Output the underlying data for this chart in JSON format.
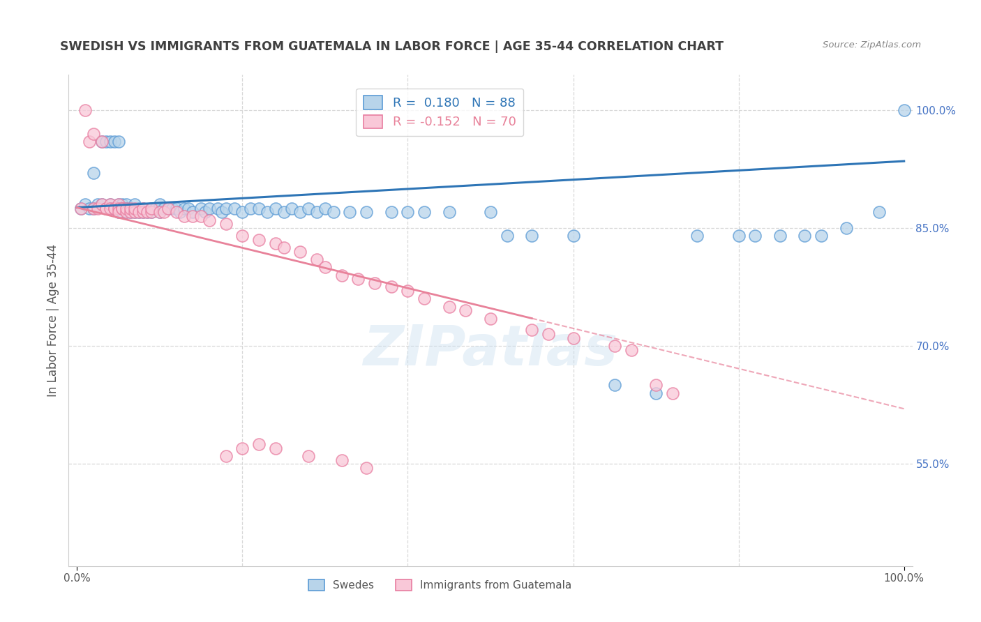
{
  "title": "SWEDISH VS IMMIGRANTS FROM GUATEMALA IN LABOR FORCE | AGE 35-44 CORRELATION CHART",
  "source": "Source: ZipAtlas.com",
  "ylabel": "In Labor Force | Age 35-44",
  "xlim": [
    -0.01,
    1.01
  ],
  "ylim": [
    0.42,
    1.045
  ],
  "yticks": [
    0.55,
    0.7,
    0.85,
    1.0
  ],
  "ytick_labels": [
    "55.0%",
    "70.0%",
    "85.0%",
    "100.0%"
  ],
  "swedes_color": "#b8d4ea",
  "swedes_edge_color": "#5b9bd5",
  "guatemala_color": "#f9c8d8",
  "guatemala_edge_color": "#e87da0",
  "trend_blue_color": "#2e75b6",
  "trend_pink_color": "#e8829a",
  "legend_label_blue": "R =  0.180   N = 88",
  "legend_label_pink": "R = -0.152   N = 70",
  "trend_blue_x0": 0.0,
  "trend_blue_y0": 0.876,
  "trend_blue_x1": 1.0,
  "trend_blue_y1": 0.935,
  "trend_pink_solid_x0": 0.0,
  "trend_pink_solid_y0": 0.876,
  "trend_pink_solid_x1": 0.55,
  "trend_pink_solid_y1": 0.735,
  "trend_pink_dash_x0": 0.55,
  "trend_pink_dash_y0": 0.735,
  "trend_pink_dash_x1": 1.0,
  "trend_pink_dash_y1": 0.62,
  "swedes_x": [
    0.005,
    0.01,
    0.015,
    0.02,
    0.02,
    0.025,
    0.03,
    0.03,
    0.035,
    0.035,
    0.04,
    0.04,
    0.04,
    0.045,
    0.045,
    0.05,
    0.05,
    0.05,
    0.05,
    0.055,
    0.055,
    0.055,
    0.06,
    0.06,
    0.06,
    0.065,
    0.065,
    0.07,
    0.07,
    0.07,
    0.075,
    0.075,
    0.08,
    0.08,
    0.085,
    0.09,
    0.09,
    0.095,
    0.1,
    0.1,
    0.105,
    0.11,
    0.115,
    0.12,
    0.125,
    0.13,
    0.135,
    0.14,
    0.15,
    0.155,
    0.16,
    0.17,
    0.175,
    0.18,
    0.19,
    0.2,
    0.21,
    0.22,
    0.23,
    0.24,
    0.25,
    0.26,
    0.27,
    0.28,
    0.29,
    0.3,
    0.31,
    0.33,
    0.35,
    0.38,
    0.4,
    0.42,
    0.45,
    0.5,
    0.52,
    0.55,
    0.6,
    0.65,
    0.7,
    0.75,
    0.8,
    0.82,
    0.85,
    0.88,
    0.9,
    0.93,
    0.97,
    1.0
  ],
  "swedes_y": [
    0.875,
    0.88,
    0.875,
    0.875,
    0.92,
    0.88,
    0.88,
    0.96,
    0.875,
    0.96,
    0.88,
    0.875,
    0.96,
    0.875,
    0.96,
    0.875,
    0.88,
    0.96,
    0.87,
    0.87,
    0.875,
    0.88,
    0.87,
    0.88,
    0.875,
    0.875,
    0.87,
    0.87,
    0.875,
    0.88,
    0.87,
    0.875,
    0.87,
    0.875,
    0.87,
    0.87,
    0.875,
    0.875,
    0.87,
    0.88,
    0.875,
    0.875,
    0.875,
    0.875,
    0.87,
    0.875,
    0.875,
    0.87,
    0.875,
    0.87,
    0.875,
    0.875,
    0.87,
    0.875,
    0.875,
    0.87,
    0.875,
    0.875,
    0.87,
    0.875,
    0.87,
    0.875,
    0.87,
    0.875,
    0.87,
    0.875,
    0.87,
    0.87,
    0.87,
    0.87,
    0.87,
    0.87,
    0.87,
    0.87,
    0.84,
    0.84,
    0.84,
    0.65,
    0.64,
    0.84,
    0.84,
    0.84,
    0.84,
    0.84,
    0.84,
    0.85,
    0.87,
    1.0
  ],
  "guatemala_x": [
    0.005,
    0.01,
    0.015,
    0.02,
    0.02,
    0.025,
    0.03,
    0.03,
    0.035,
    0.035,
    0.04,
    0.04,
    0.045,
    0.045,
    0.05,
    0.05,
    0.05,
    0.055,
    0.055,
    0.06,
    0.06,
    0.065,
    0.065,
    0.07,
    0.07,
    0.075,
    0.08,
    0.08,
    0.085,
    0.09,
    0.09,
    0.1,
    0.105,
    0.11,
    0.12,
    0.13,
    0.14,
    0.15,
    0.16,
    0.18,
    0.2,
    0.22,
    0.24,
    0.25,
    0.27,
    0.29,
    0.3,
    0.32,
    0.34,
    0.36,
    0.38,
    0.4,
    0.42,
    0.45,
    0.47,
    0.5,
    0.55,
    0.57,
    0.6,
    0.65,
    0.67,
    0.7,
    0.72,
    0.18,
    0.2,
    0.22,
    0.24,
    0.28,
    0.32,
    0.35
  ],
  "guatemala_y": [
    0.875,
    1.0,
    0.96,
    0.875,
    0.97,
    0.875,
    0.88,
    0.96,
    0.875,
    0.875,
    0.88,
    0.875,
    0.875,
    0.875,
    0.88,
    0.875,
    0.87,
    0.875,
    0.875,
    0.87,
    0.875,
    0.87,
    0.875,
    0.87,
    0.875,
    0.87,
    0.87,
    0.875,
    0.87,
    0.87,
    0.875,
    0.87,
    0.87,
    0.875,
    0.87,
    0.865,
    0.865,
    0.865,
    0.86,
    0.855,
    0.84,
    0.835,
    0.83,
    0.825,
    0.82,
    0.81,
    0.8,
    0.79,
    0.785,
    0.78,
    0.775,
    0.77,
    0.76,
    0.75,
    0.745,
    0.735,
    0.72,
    0.715,
    0.71,
    0.7,
    0.695,
    0.65,
    0.64,
    0.56,
    0.57,
    0.575,
    0.57,
    0.56,
    0.555,
    0.545
  ],
  "watermark": "ZIPatlas",
  "background_color": "#ffffff",
  "grid_color": "#d8d8d8",
  "right_ytick_color": "#4472c4",
  "title_color": "#404040",
  "label_color": "#555555"
}
